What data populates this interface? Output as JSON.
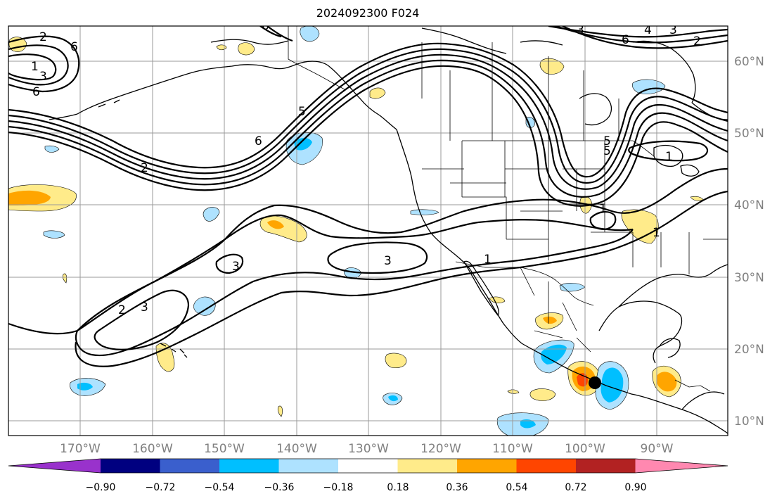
{
  "title": "2024092300 F024",
  "map": {
    "lon_labels": [
      "170°W",
      "160°W",
      "150°W",
      "140°W",
      "130°W",
      "120°W",
      "110°W",
      "100°W",
      "90°W"
    ],
    "lat_labels": [
      "60°N",
      "50°N",
      "40°N",
      "30°N",
      "20°N",
      "10°N"
    ],
    "contour_labels": [
      "2",
      "6",
      "1",
      "3",
      "6",
      "6",
      "5",
      "6",
      "2",
      "3",
      "3",
      "2",
      "3",
      "3",
      "1",
      "1",
      "1",
      "1",
      "6",
      "4",
      "2",
      "3",
      "5",
      "5"
    ],
    "marker": "storm-center-dot"
  },
  "colorbar": {
    "ticks": [
      "−0.90",
      "−0.72",
      "−0.54",
      "−0.36",
      "−0.18",
      "0.18",
      "0.36",
      "0.54",
      "0.72",
      "0.90"
    ],
    "colors": [
      "#9932cc",
      "#000080",
      "#3a5fcd",
      "#00bfff",
      "#aee2ff",
      "#ffffff",
      "#ffeb8a",
      "#ffa500",
      "#ff4500",
      "#b22222",
      "#ff88b0"
    ]
  }
}
